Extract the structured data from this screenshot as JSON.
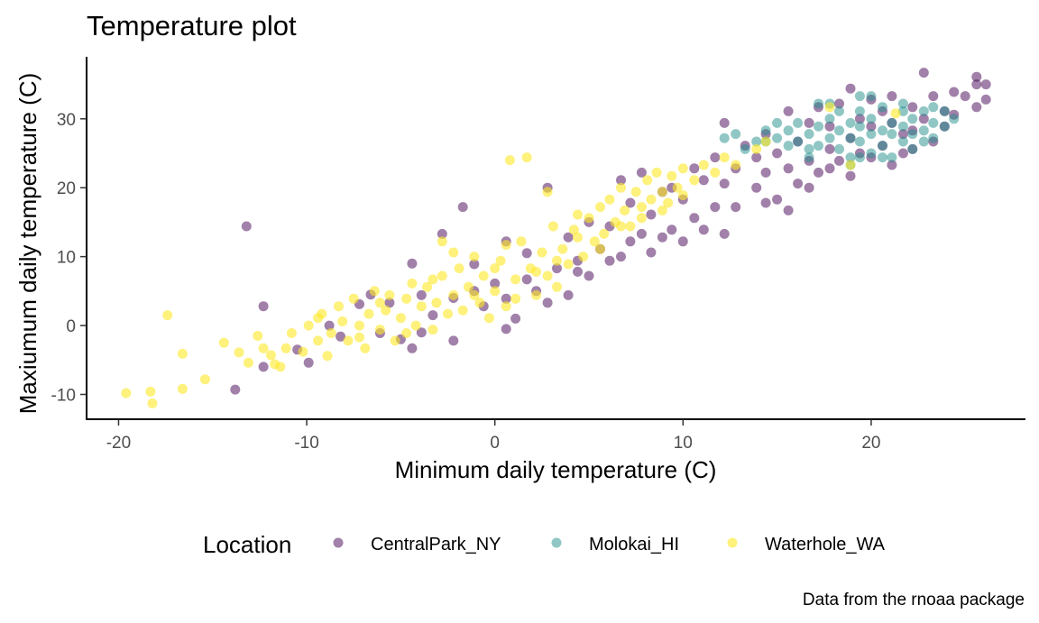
{
  "chart_data": {
    "type": "scatter",
    "title": "Temperature plot",
    "xlabel": "Minimum daily temperature (C)",
    "ylabel": "Maxiumum daily temperature (C)",
    "caption": "Data from the rnoaa package",
    "xlim": [
      -21.7,
      28.2
    ],
    "ylim": [
      -13.6,
      39.0
    ],
    "xticks": [
      -20,
      -10,
      0,
      10,
      20
    ],
    "xtick_labels": [
      "-20",
      "-10",
      "0",
      "10",
      "20"
    ],
    "yticks": [
      -10,
      0,
      10,
      20,
      30
    ],
    "ytick_labels": [
      "-10",
      "0",
      "10",
      "20",
      "30"
    ],
    "grid": false,
    "legend": {
      "title": "Location",
      "position": "bottom"
    },
    "series": [
      {
        "name": "CentralPark_NY",
        "color": "#440154",
        "opacity": 0.5,
        "points": [
          [
            -13.2,
            14.4
          ],
          [
            -12.3,
            2.8
          ],
          [
            -12.3,
            -6.0
          ],
          [
            -13.8,
            -9.3
          ],
          [
            -10.5,
            -3.5
          ],
          [
            -9.9,
            -5.4
          ],
          [
            -8.8,
            0.0
          ],
          [
            -8.2,
            -1.6
          ],
          [
            -7.2,
            3.1
          ],
          [
            -6.6,
            4.5
          ],
          [
            -5.0,
            -2.0
          ],
          [
            -4.4,
            9.0
          ],
          [
            -3.9,
            -1.0
          ],
          [
            -3.3,
            1.5
          ],
          [
            -2.8,
            13.3
          ],
          [
            -1.7,
            17.2
          ],
          [
            -2.2,
            4.0
          ],
          [
            -1.1,
            8.9
          ],
          [
            -0.6,
            2.8
          ],
          [
            0.0,
            6.1
          ],
          [
            0.6,
            12.2
          ],
          [
            0.6,
            -0.5
          ],
          [
            1.1,
            1.0
          ],
          [
            1.7,
            10.5
          ],
          [
            2.2,
            5.0
          ],
          [
            2.8,
            20.0
          ],
          [
            3.3,
            8.3
          ],
          [
            3.9,
            12.8
          ],
          [
            3.9,
            4.4
          ],
          [
            4.4,
            9.4
          ],
          [
            5.0,
            15.0
          ],
          [
            5.0,
            7.2
          ],
          [
            5.6,
            11.1
          ],
          [
            6.1,
            14.4
          ],
          [
            6.7,
            21.1
          ],
          [
            6.7,
            10.0
          ],
          [
            7.2,
            17.8
          ],
          [
            7.8,
            22.2
          ],
          [
            7.8,
            13.3
          ],
          [
            8.3,
            16.1
          ],
          [
            8.9,
            19.4
          ],
          [
            8.9,
            12.8
          ],
          [
            9.4,
            20.0
          ],
          [
            10.0,
            18.3
          ],
          [
            10.6,
            22.8
          ],
          [
            10.6,
            15.6
          ],
          [
            11.1,
            21.1
          ],
          [
            11.7,
            17.2
          ],
          [
            11.7,
            24.4
          ],
          [
            12.2,
            20.6
          ],
          [
            12.2,
            29.4
          ],
          [
            12.8,
            22.8
          ],
          [
            12.8,
            17.2
          ],
          [
            13.3,
            26.1
          ],
          [
            13.9,
            24.4
          ],
          [
            13.9,
            20.0
          ],
          [
            14.4,
            22.2
          ],
          [
            14.4,
            27.8
          ],
          [
            15.0,
            25.0
          ],
          [
            15.0,
            18.3
          ],
          [
            15.6,
            22.8
          ],
          [
            15.6,
            31.1
          ],
          [
            16.1,
            20.6
          ],
          [
            16.1,
            26.7
          ],
          [
            16.7,
            23.9
          ],
          [
            16.7,
            29.4
          ],
          [
            17.2,
            22.2
          ],
          [
            17.2,
            31.7
          ],
          [
            17.8,
            25.6
          ],
          [
            17.8,
            28.9
          ],
          [
            18.3,
            32.2
          ],
          [
            18.3,
            23.9
          ],
          [
            18.9,
            34.4
          ],
          [
            18.9,
            27.2
          ],
          [
            19.4,
            30.0
          ],
          [
            19.4,
            25.0
          ],
          [
            20.0,
            28.9
          ],
          [
            20.0,
            32.8
          ],
          [
            20.6,
            26.1
          ],
          [
            20.6,
            31.1
          ],
          [
            21.1,
            29.4
          ],
          [
            21.1,
            33.3
          ],
          [
            21.7,
            27.8
          ],
          [
            21.7,
            25.0
          ],
          [
            22.2,
            31.7
          ],
          [
            22.2,
            28.3
          ],
          [
            22.8,
            36.7
          ],
          [
            22.8,
            30.0
          ],
          [
            23.3,
            33.3
          ],
          [
            23.9,
            31.1
          ],
          [
            23.9,
            28.9
          ],
          [
            24.4,
            33.9
          ],
          [
            24.4,
            30.6
          ],
          [
            25.0,
            33.3
          ],
          [
            25.6,
            36.1
          ],
          [
            25.6,
            35.0
          ],
          [
            25.6,
            31.7
          ],
          [
            26.1,
            35.0
          ],
          [
            26.1,
            32.8
          ],
          [
            -6.1,
            -1.1
          ],
          [
            -5.6,
            3.3
          ],
          [
            -4.4,
            -3.3
          ],
          [
            -3.9,
            4.4
          ],
          [
            -2.2,
            -2.2
          ],
          [
            -1.1,
            5.0
          ],
          [
            0.6,
            3.9
          ],
          [
            1.7,
            6.7
          ],
          [
            2.8,
            3.3
          ],
          [
            4.4,
            7.8
          ],
          [
            6.1,
            9.4
          ],
          [
            7.2,
            12.2
          ],
          [
            8.3,
            10.6
          ],
          [
            9.4,
            13.9
          ],
          [
            10.0,
            12.2
          ],
          [
            11.1,
            13.9
          ],
          [
            12.2,
            13.3
          ],
          [
            14.4,
            17.8
          ],
          [
            15.6,
            16.7
          ],
          [
            16.7,
            20.0
          ],
          [
            17.8,
            22.8
          ],
          [
            18.9,
            21.7
          ],
          [
            20.0,
            24.4
          ],
          [
            21.1,
            23.3
          ],
          [
            22.2,
            25.6
          ],
          [
            23.3,
            26.7
          ]
        ]
      },
      {
        "name": "Molokai_HI",
        "color": "#21908C",
        "opacity": 0.5,
        "points": [
          [
            12.2,
            27.2
          ],
          [
            12.8,
            27.8
          ],
          [
            13.3,
            25.6
          ],
          [
            13.9,
            26.7
          ],
          [
            14.4,
            28.3
          ],
          [
            15.0,
            27.2
          ],
          [
            15.0,
            29.4
          ],
          [
            15.6,
            28.3
          ],
          [
            16.1,
            26.7
          ],
          [
            16.1,
            29.4
          ],
          [
            16.7,
            27.8
          ],
          [
            16.7,
            25.6
          ],
          [
            17.2,
            28.9
          ],
          [
            17.2,
            26.1
          ],
          [
            17.8,
            30.0
          ],
          [
            17.8,
            27.2
          ],
          [
            17.8,
            32.2
          ],
          [
            18.3,
            28.3
          ],
          [
            18.3,
            25.6
          ],
          [
            18.3,
            31.1
          ],
          [
            18.9,
            27.2
          ],
          [
            18.9,
            29.4
          ],
          [
            18.9,
            24.4
          ],
          [
            19.4,
            28.9
          ],
          [
            19.4,
            26.7
          ],
          [
            19.4,
            31.1
          ],
          [
            20.0,
            27.8
          ],
          [
            20.0,
            30.0
          ],
          [
            20.0,
            25.0
          ],
          [
            20.0,
            33.3
          ],
          [
            20.6,
            28.3
          ],
          [
            20.6,
            26.1
          ],
          [
            20.6,
            31.7
          ],
          [
            21.1,
            27.8
          ],
          [
            21.1,
            29.4
          ],
          [
            21.1,
            24.4
          ],
          [
            21.7,
            28.9
          ],
          [
            21.7,
            26.7
          ],
          [
            21.7,
            31.1
          ],
          [
            22.2,
            27.8
          ],
          [
            22.2,
            30.0
          ],
          [
            22.2,
            25.6
          ],
          [
            22.8,
            28.3
          ],
          [
            22.8,
            31.1
          ],
          [
            23.3,
            27.2
          ],
          [
            23.3,
            29.4
          ],
          [
            23.9,
            28.9
          ],
          [
            23.9,
            31.1
          ],
          [
            24.4,
            30.0
          ],
          [
            18.9,
            23.3
          ],
          [
            19.4,
            24.4
          ],
          [
            17.2,
            32.2
          ],
          [
            16.7,
            24.4
          ],
          [
            15.6,
            26.1
          ],
          [
            14.4,
            26.7
          ],
          [
            19.4,
            33.3
          ],
          [
            20.6,
            24.4
          ],
          [
            21.7,
            32.2
          ],
          [
            22.8,
            26.7
          ],
          [
            23.3,
            31.7
          ]
        ]
      },
      {
        "name": "Waterhole_WA",
        "color": "#FDE725",
        "opacity": 0.6,
        "points": [
          [
            -19.6,
            -9.8
          ],
          [
            -18.3,
            -9.6
          ],
          [
            -18.2,
            -11.3
          ],
          [
            -16.6,
            -9.2
          ],
          [
            -15.4,
            -7.8
          ],
          [
            -17.4,
            1.5
          ],
          [
            -16.6,
            -4.1
          ],
          [
            -14.4,
            -2.5
          ],
          [
            -13.1,
            -5.4
          ],
          [
            -12.6,
            -1.5
          ],
          [
            -11.9,
            -4.3
          ],
          [
            -11.4,
            -6.0
          ],
          [
            -11.1,
            -3.3
          ],
          [
            -10.8,
            -1.1
          ],
          [
            -10.2,
            -3.8
          ],
          [
            -9.9,
            0.0
          ],
          [
            -9.4,
            -2.2
          ],
          [
            -9.2,
            1.7
          ],
          [
            -8.9,
            -4.4
          ],
          [
            -8.7,
            -1.1
          ],
          [
            -8.3,
            2.8
          ],
          [
            -8.1,
            0.6
          ],
          [
            -7.8,
            -2.2
          ],
          [
            -7.5,
            3.9
          ],
          [
            -7.2,
            0.0
          ],
          [
            -6.9,
            -3.3
          ],
          [
            -6.7,
            1.7
          ],
          [
            -6.4,
            5.0
          ],
          [
            -6.1,
            -0.6
          ],
          [
            -5.8,
            2.2
          ],
          [
            -5.6,
            4.4
          ],
          [
            -5.3,
            -2.2
          ],
          [
            -5.0,
            1.1
          ],
          [
            -4.7,
            3.9
          ],
          [
            -4.4,
            6.1
          ],
          [
            -4.2,
            0.0
          ],
          [
            -3.9,
            2.8
          ],
          [
            -3.6,
            5.6
          ],
          [
            -3.3,
            -0.6
          ],
          [
            -3.1,
            3.3
          ],
          [
            -2.8,
            7.2
          ],
          [
            -2.5,
            1.7
          ],
          [
            -2.2,
            4.4
          ],
          [
            -1.9,
            8.3
          ],
          [
            -1.7,
            2.2
          ],
          [
            -1.4,
            5.6
          ],
          [
            -1.1,
            10.0
          ],
          [
            -0.8,
            3.3
          ],
          [
            -0.6,
            7.2
          ],
          [
            -0.3,
            1.1
          ],
          [
            0.0,
            5.0
          ],
          [
            0.3,
            9.4
          ],
          [
            0.6,
            2.8
          ],
          [
            0.8,
            24.0
          ],
          [
            1.1,
            6.7
          ],
          [
            1.4,
            12.2
          ],
          [
            1.7,
            24.4
          ],
          [
            1.9,
            8.3
          ],
          [
            2.2,
            4.4
          ],
          [
            2.5,
            10.6
          ],
          [
            2.8,
            7.2
          ],
          [
            3.1,
            14.4
          ],
          [
            3.3,
            5.6
          ],
          [
            3.6,
            11.1
          ],
          [
            3.9,
            8.9
          ],
          [
            4.2,
            13.9
          ],
          [
            4.4,
            16.1
          ],
          [
            4.7,
            10.0
          ],
          [
            5.0,
            15.6
          ],
          [
            5.3,
            12.2
          ],
          [
            5.6,
            17.2
          ],
          [
            5.8,
            13.3
          ],
          [
            6.1,
            18.3
          ],
          [
            6.4,
            15.0
          ],
          [
            6.7,
            20.0
          ],
          [
            6.9,
            16.7
          ],
          [
            7.2,
            14.4
          ],
          [
            7.5,
            19.4
          ],
          [
            7.8,
            17.2
          ],
          [
            8.1,
            21.1
          ],
          [
            8.3,
            18.3
          ],
          [
            8.6,
            22.2
          ],
          [
            8.9,
            19.4
          ],
          [
            9.2,
            17.8
          ],
          [
            9.4,
            21.7
          ],
          [
            9.7,
            20.0
          ],
          [
            10.0,
            22.8
          ],
          [
            10.6,
            21.1
          ],
          [
            11.1,
            23.3
          ],
          [
            11.7,
            22.2
          ],
          [
            12.2,
            24.4
          ],
          [
            12.8,
            23.3
          ],
          [
            13.9,
            25.6
          ],
          [
            14.4,
            26.7
          ],
          [
            17.8,
            31.7
          ],
          [
            18.9,
            23.3
          ],
          [
            21.3,
            30.8
          ],
          [
            -12.3,
            -3.3
          ],
          [
            -13.6,
            -3.9
          ],
          [
            -11.7,
            -5.6
          ],
          [
            -9.4,
            1.1
          ],
          [
            -7.2,
            -1.7
          ],
          [
            -6.1,
            3.3
          ],
          [
            -4.7,
            -1.1
          ],
          [
            -3.3,
            6.7
          ],
          [
            -2.2,
            10.6
          ],
          [
            -1.1,
            4.4
          ],
          [
            0.0,
            8.3
          ],
          [
            1.1,
            3.9
          ],
          [
            2.2,
            7.8
          ],
          [
            3.3,
            9.4
          ],
          [
            4.4,
            12.8
          ],
          [
            5.6,
            11.1
          ],
          [
            6.7,
            14.4
          ],
          [
            7.8,
            15.6
          ],
          [
            8.9,
            16.7
          ],
          [
            10.0,
            18.9
          ],
          [
            2.8,
            19.4
          ],
          [
            -2.8,
            12.2
          ],
          [
            0.6,
            11.7
          ]
        ]
      }
    ]
  }
}
